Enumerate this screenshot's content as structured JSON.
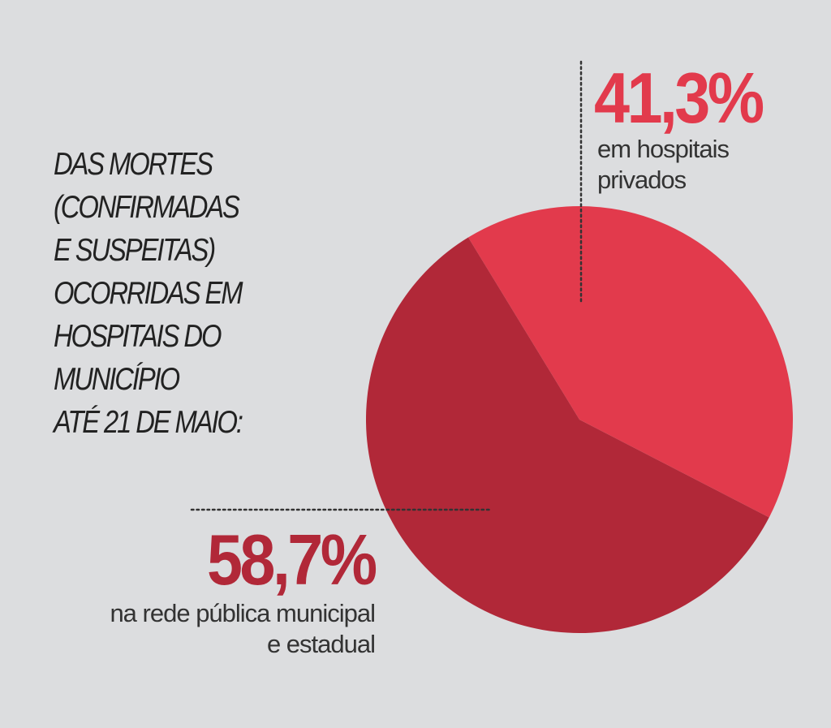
{
  "title_lines": [
    " DAS MORTES",
    "(CONFIRMADAS",
    "E SUSPEITAS)",
    "OCORRIDAS EM",
    "HOSPITAIS DO",
    "MUNICÍPIO",
    "ATÉ 21 DE MAIO:"
  ],
  "colors": {
    "background": "#dcdddf",
    "private": "#e23a4c",
    "public": "#b12838",
    "accent_text": "#e23a4c",
    "leader": "#333333"
  },
  "chart_data": {
    "type": "pie",
    "title": " DAS MORTES (CONFIRMADAS E SUSPEITAS) OCORRIDAS EM HOSPITAIS DO MUNICÍPIO ATÉ 21 DE MAIO:",
    "slices": [
      {
        "value": 41.3,
        "value_label": "41,3%",
        "label_lines": [
          "em hospitais",
          "privados"
        ],
        "color": "#e23a4c"
      },
      {
        "value": 58.7,
        "value_label": "58,7%",
        "label_lines": [
          "na rede pública municipal",
          "e estadual"
        ],
        "color": "#b12838"
      }
    ]
  }
}
